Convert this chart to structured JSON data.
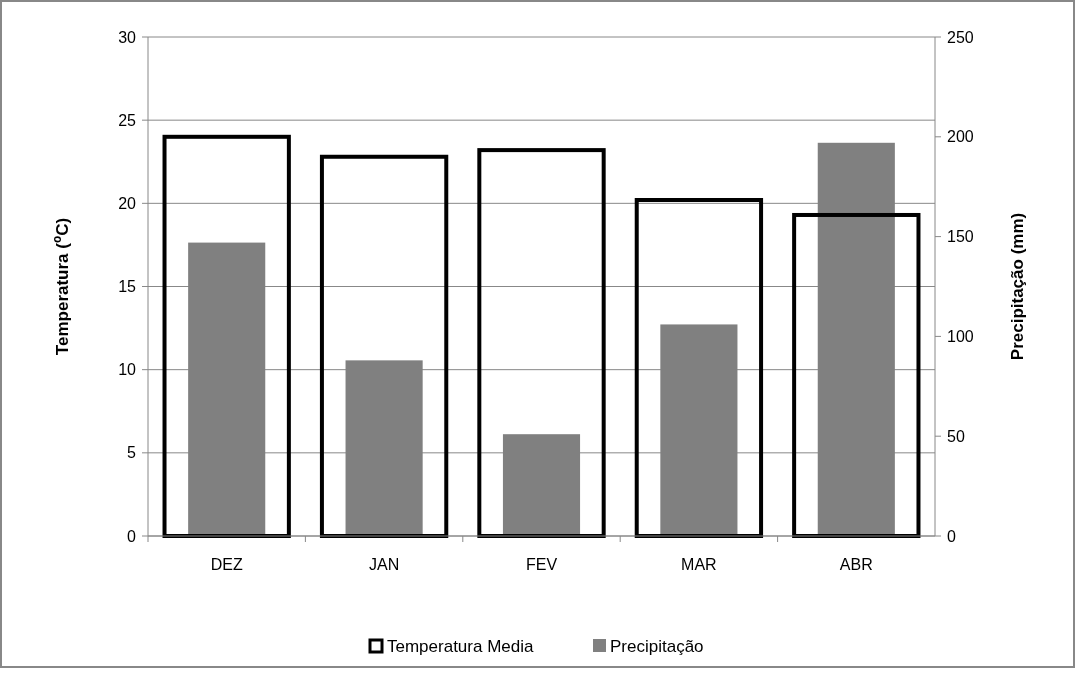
{
  "chart_data": {
    "type": "bar",
    "ylabel": "Temperatura ($^{o}$C)",
    "y2label": "Precipitação (mm)",
    "categories": [
      "DEZ",
      "JAN",
      "FEV",
      "MAR",
      "ABR"
    ],
    "series": [
      {
        "name": "Temperatura Media",
        "color": "#000000",
        "values": [
          24.0,
          22.8,
          23.2,
          20.2,
          19.3
        ]
      },
      {
        "name": "Precipitação",
        "color": "#808080",
        "axis": "y2",
        "values": [
          147,
          88,
          51,
          106,
          197
        ]
      }
    ],
    "ylim": [
      0,
      30
    ],
    "yticks": [
      0,
      5,
      10,
      15,
      20,
      25,
      30
    ],
    "y2lim": [
      0,
      250
    ],
    "y2ticks": [
      0,
      50,
      100,
      150,
      200,
      250
    ],
    "grid": "y",
    "legend": "bottom"
  }
}
